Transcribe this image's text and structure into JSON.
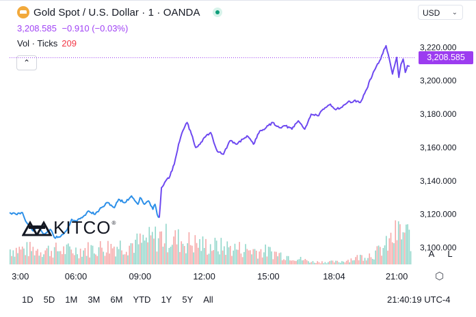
{
  "header": {
    "title": "Gold Spot / U.S. Dollar · 1 · OANDA",
    "quote_price": "3,208.585",
    "quote_change": "−0.910 (−0.03%)",
    "vol_label": "Vol · Ticks",
    "vol_value": "209",
    "currency": "USD"
  },
  "bottom_bar": {
    "timeframes": [
      "1D",
      "5D",
      "1M",
      "3M",
      "6M",
      "YTD",
      "1Y",
      "5Y",
      "All"
    ],
    "clock": "21:40:19 UTC-4"
  },
  "axis_buttons": {
    "auto": "A",
    "log": "L"
  },
  "watermark": {
    "brand": "KITCO"
  },
  "colors": {
    "line_before": "#2c8fe8",
    "line_after": "#6d48f0",
    "price_tag": "#9c3cf0",
    "volume_up": "#7fd0c2",
    "volume_down": "#f59a9a",
    "live": "#0f9d7a"
  },
  "chart_data": {
    "type": "line",
    "title": "Gold Spot / U.S. Dollar · 1 · OANDA",
    "ylim": [
      3090,
      3232
    ],
    "y_ticks": [
      "3,220.000",
      "3,200.000",
      "3,180.000",
      "3,160.000",
      "3,140.000",
      "3,120.000",
      "3,100.000"
    ],
    "y_tick_values": [
      3220,
      3200,
      3180,
      3160,
      3140,
      3120,
      3100
    ],
    "x_ticks": [
      "3:00",
      "06:00",
      "09:00",
      "12:00",
      "15:00",
      "18:04",
      "21:00"
    ],
    "x_tick_hours": [
      3,
      6,
      9,
      12,
      15,
      18.07,
      21
    ],
    "xlim_hours": [
      2.9,
      21.7
    ],
    "last_price": "3,208.585",
    "series": [
      {
        "x_hours": [
          2.9,
          3.2,
          3.5,
          3.7,
          4.0,
          4.2,
          4.5,
          4.8,
          5.0,
          5.3,
          5.6,
          5.8,
          6.0,
          6.3,
          6.6,
          6.9,
          7.2,
          7.5,
          7.8,
          8.0,
          8.3,
          8.6,
          8.9,
          9.0,
          9.2,
          9.4,
          9.6,
          9.7,
          9.8,
          9.9
        ],
        "y": [
          3121,
          3120,
          3121,
          3115,
          3110,
          3113,
          3108,
          3111,
          3106,
          3107,
          3111,
          3117,
          3116,
          3118,
          3122,
          3120,
          3124,
          3127,
          3124,
          3129,
          3127,
          3131,
          3126,
          3130,
          3126,
          3128,
          3123,
          3126,
          3120,
          3118
        ]
      },
      {
        "x_hours": [
          9.9,
          10.0,
          10.2,
          10.4,
          10.6,
          10.8,
          11.0,
          11.2,
          11.4,
          11.6,
          11.8,
          12.0,
          12.3,
          12.6,
          12.9,
          13.2,
          13.5,
          13.8,
          14.0,
          14.3,
          14.6,
          14.9,
          15.2,
          15.5,
          15.8,
          16.1,
          16.4,
          16.7,
          17.0,
          17.3,
          17.6,
          17.9,
          18.1,
          18.4,
          18.7,
          19.0,
          19.3,
          19.6,
          19.9,
          20.2,
          20.5,
          20.8,
          21.0,
          21.1,
          21.2,
          21.3,
          21.4,
          21.5,
          21.6
        ],
        "y": [
          3118,
          3136,
          3140,
          3143,
          3150,
          3162,
          3170,
          3175,
          3168,
          3160,
          3162,
          3166,
          3169,
          3158,
          3156,
          3164,
          3162,
          3165,
          3167,
          3162,
          3170,
          3172,
          3175,
          3172,
          3173,
          3171,
          3176,
          3171,
          3180,
          3179,
          3183,
          3186,
          3183,
          3184,
          3187,
          3188,
          3187,
          3195,
          3205,
          3212,
          3221,
          3204,
          3214,
          3202,
          3210,
          3213,
          3205,
          3209,
          3208.585
        ]
      }
    ],
    "volume": {
      "ylim": [
        0,
        100
      ],
      "bars_per_hour": 14,
      "profile_hours": [
        2.9,
        6.0,
        9.0,
        9.9,
        12.0,
        15.0,
        17.0,
        18.3,
        20.0,
        20.5,
        21.0,
        21.7
      ],
      "profile_values": [
        24,
        22,
        34,
        44,
        30,
        20,
        4,
        4,
        18,
        30,
        50,
        44
      ]
    }
  }
}
